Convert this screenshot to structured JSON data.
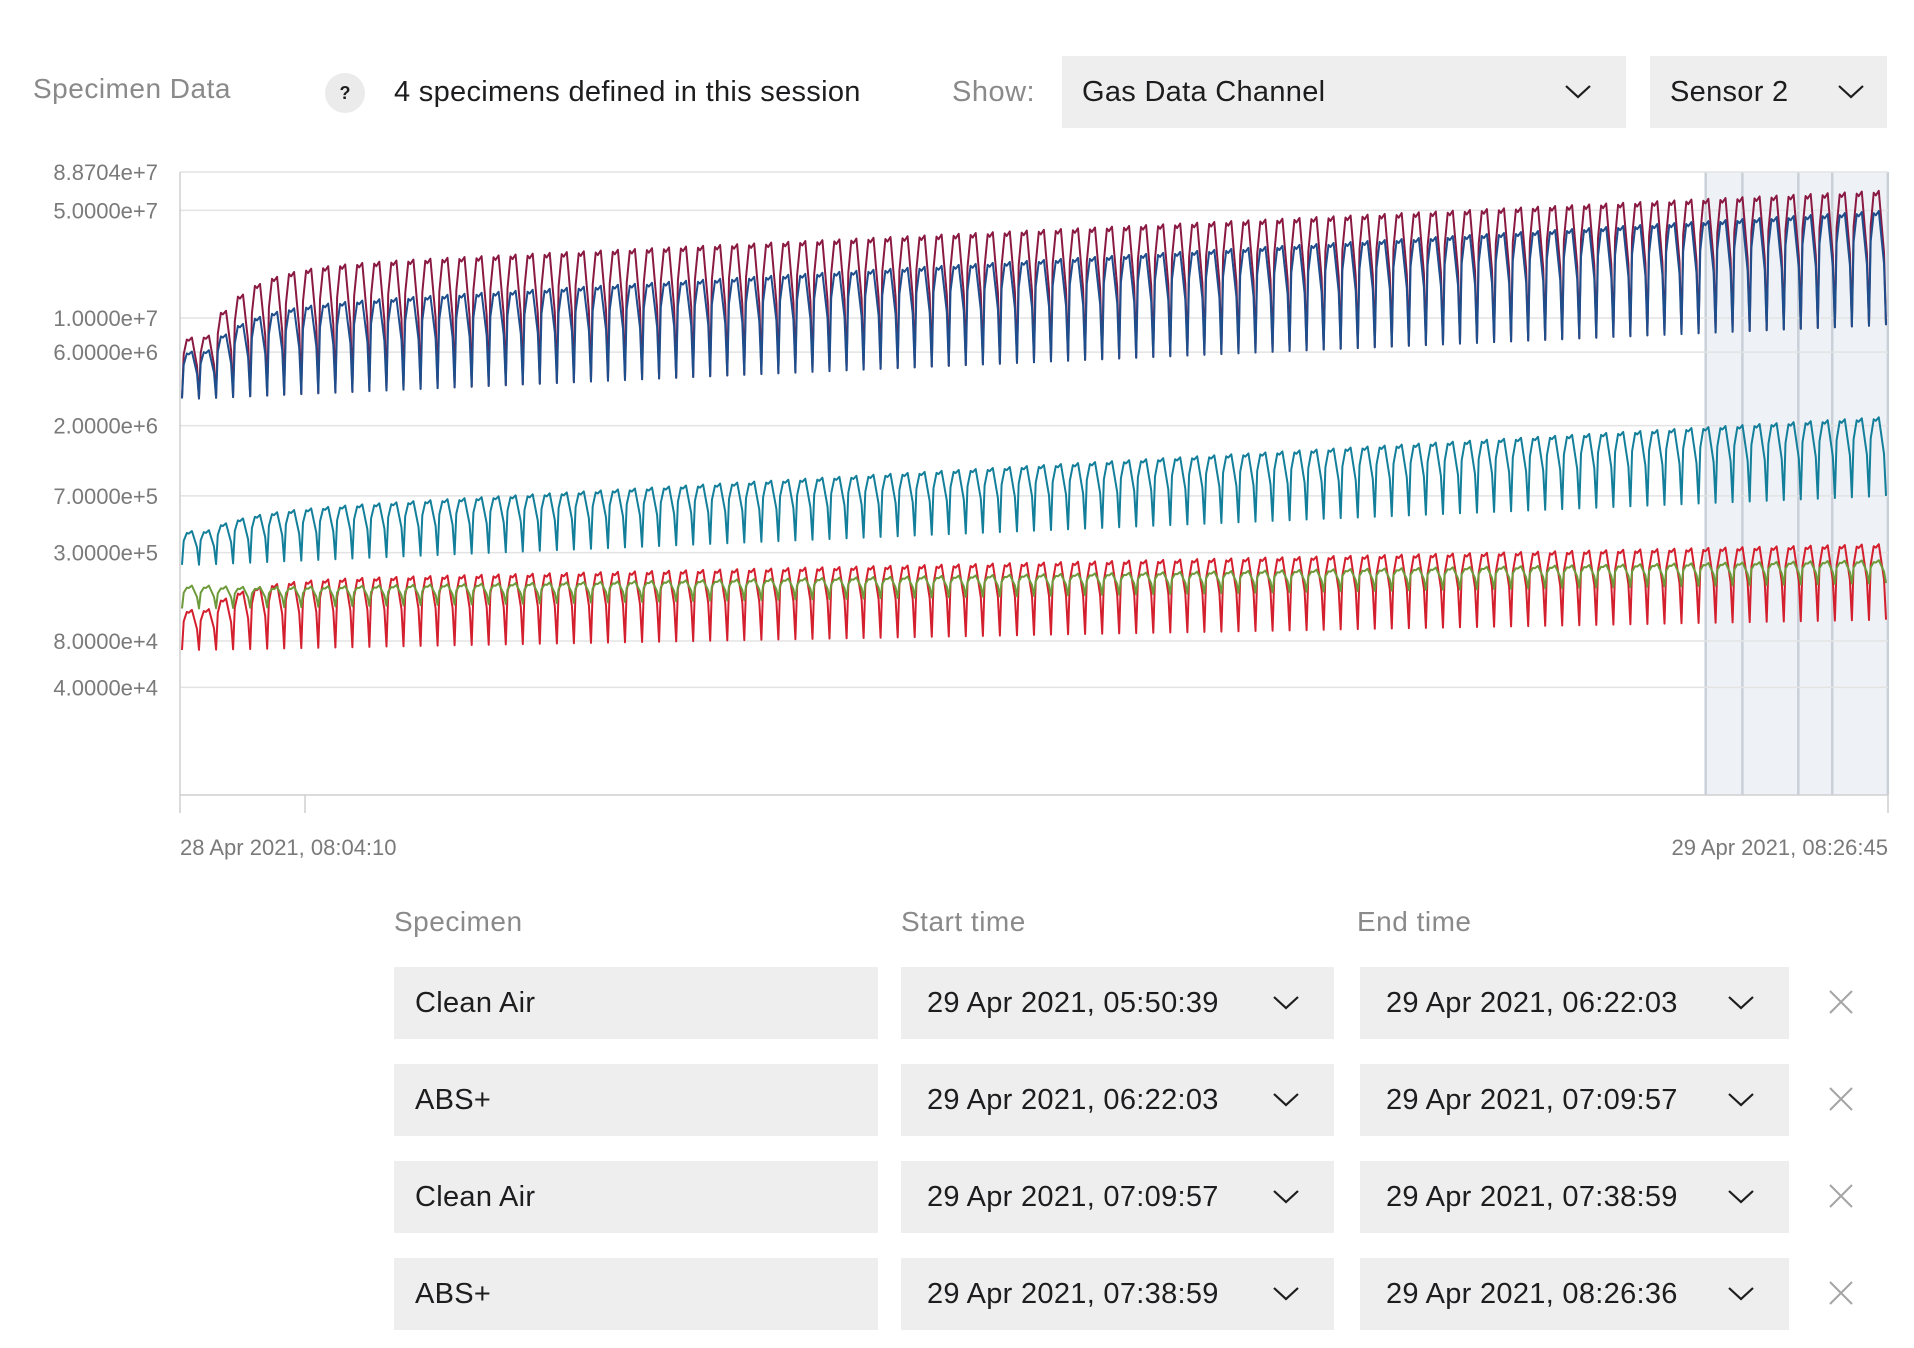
{
  "header": {
    "section_title": "Specimen Data",
    "help_label": "?",
    "session_info": "4 specimens defined in this session",
    "show_label": "Show:",
    "channel_selected": "Gas Data Channel",
    "sensor_selected": "Sensor 2"
  },
  "colors": {
    "series_maroon": "#8b1a43",
    "series_navy": "#1f4e8c",
    "series_teal": "#137f9a",
    "series_red": "#d41f2e",
    "series_green": "#6d9a3a",
    "highlight_band": "#eef2f7",
    "control_bg": "#eeeeee"
  },
  "chart_data": {
    "type": "line",
    "y_scale": "log",
    "y_tick_labels": [
      "8.8704e+7",
      "5.0000e+7",
      "1.0000e+7",
      "6.0000e+6",
      "2.0000e+6",
      "7.0000e+5",
      "3.0000e+5",
      "8.0000e+4",
      "4.0000e+4"
    ],
    "y_ticks": [
      88704000,
      50000000,
      10000000,
      6000000,
      2000000,
      700000,
      300000,
      80000,
      40000
    ],
    "ylim": [
      8000,
      88704000
    ],
    "x_start_label": "28 Apr 2021, 08:04:10",
    "x_end_label": "29 Apr 2021, 08:26:45",
    "x_range": [
      "2021-04-28T08:04:10",
      "2021-04-29T08:26:45"
    ],
    "grid": true,
    "cycle_count": 100,
    "highlighted_interval": [
      "2021-04-29T05:50:39",
      "2021-04-29T08:26:36"
    ],
    "series": [
      {
        "color_key": "series_maroon",
        "peak_start": 20000000,
        "peak_end": 65000000,
        "trough_start": 3000000,
        "trough_end": 9000000
      },
      {
        "color_key": "series_navy",
        "peak_start": 11000000,
        "peak_end": 48000000,
        "trough_start": 3000000,
        "trough_end": 9000000
      },
      {
        "color_key": "series_teal",
        "peak_start": 520000,
        "peak_end": 2200000,
        "trough_start": 250000,
        "trough_end": 700000
      },
      {
        "color_key": "series_red",
        "peak_start": 190000,
        "peak_end": 330000,
        "trough_start": 70000,
        "trough_end": 110000
      },
      {
        "color_key": "series_green",
        "peak_start": 170000,
        "peak_end": 260000,
        "trough_start": 130000,
        "trough_end": 190000
      }
    ]
  },
  "table": {
    "col_specimen": "Specimen",
    "col_start": "Start time",
    "col_end": "End time",
    "rows": [
      {
        "specimen": "Clean Air",
        "start": "29 Apr 2021, 05:50:39",
        "end": "29 Apr 2021, 06:22:03"
      },
      {
        "specimen": "ABS+",
        "start": "29 Apr 2021, 06:22:03",
        "end": "29 Apr 2021, 07:09:57"
      },
      {
        "specimen": "Clean Air",
        "start": "29 Apr 2021, 07:09:57",
        "end": "29 Apr 2021, 07:38:59"
      },
      {
        "specimen": "ABS+",
        "start": "29 Apr 2021, 07:38:59",
        "end": "29 Apr 2021, 08:26:36"
      }
    ]
  }
}
